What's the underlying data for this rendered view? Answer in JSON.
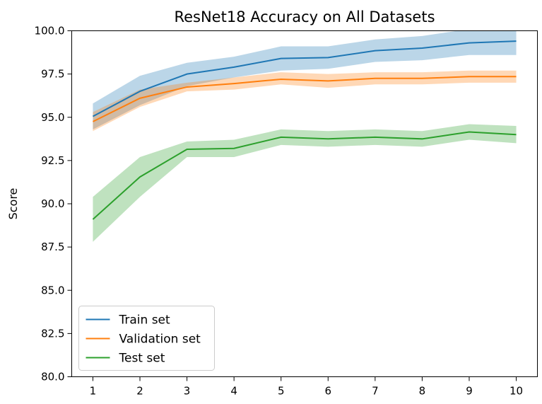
{
  "chart_data": {
    "type": "line",
    "title": "ResNet18 Accuracy on All Datasets",
    "xlabel": "",
    "ylabel": "Score",
    "x": [
      1,
      2,
      3,
      4,
      5,
      6,
      7,
      8,
      9,
      10
    ],
    "xlim": [
      0.55,
      10.45
    ],
    "ylim": [
      80.0,
      100.0
    ],
    "yticks": [
      "80.0",
      "82.5",
      "85.0",
      "87.5",
      "90.0",
      "92.5",
      "95.0",
      "97.5",
      "100.0"
    ],
    "xticks": [
      "1",
      "2",
      "3",
      "4",
      "5",
      "6",
      "7",
      "8",
      "9",
      "10"
    ],
    "grid": false,
    "legend_position": "lower-left",
    "series": [
      {
        "name": "Train set",
        "color": "#1f77b4",
        "values": [
          95.05,
          96.5,
          97.5,
          97.9,
          98.4,
          98.45,
          98.85,
          99.0,
          99.3,
          99.4
        ],
        "lower": [
          94.3,
          95.7,
          96.8,
          97.3,
          97.7,
          97.8,
          98.2,
          98.3,
          98.6,
          98.6
        ],
        "upper": [
          95.8,
          97.4,
          98.15,
          98.5,
          99.1,
          99.1,
          99.5,
          99.7,
          100.1,
          100.2
        ]
      },
      {
        "name": "Validation set",
        "color": "#ff7f0e",
        "values": [
          94.75,
          96.1,
          96.75,
          96.95,
          97.2,
          97.1,
          97.25,
          97.25,
          97.35,
          97.35
        ],
        "lower": [
          94.2,
          95.6,
          96.5,
          96.6,
          96.9,
          96.7,
          96.9,
          96.9,
          97.0,
          97.0
        ],
        "upper": [
          95.3,
          96.6,
          97.0,
          97.3,
          97.6,
          97.5,
          97.6,
          97.6,
          97.7,
          97.7
        ]
      },
      {
        "name": "Test set",
        "color": "#2ca02c",
        "values": [
          89.1,
          91.55,
          93.15,
          93.2,
          93.85,
          93.75,
          93.85,
          93.75,
          94.15,
          94.0
        ],
        "lower": [
          87.8,
          90.4,
          92.7,
          92.7,
          93.4,
          93.3,
          93.4,
          93.3,
          93.7,
          93.5
        ],
        "upper": [
          90.4,
          92.7,
          93.6,
          93.7,
          94.3,
          94.2,
          94.3,
          94.2,
          94.6,
          94.5
        ]
      }
    ]
  }
}
